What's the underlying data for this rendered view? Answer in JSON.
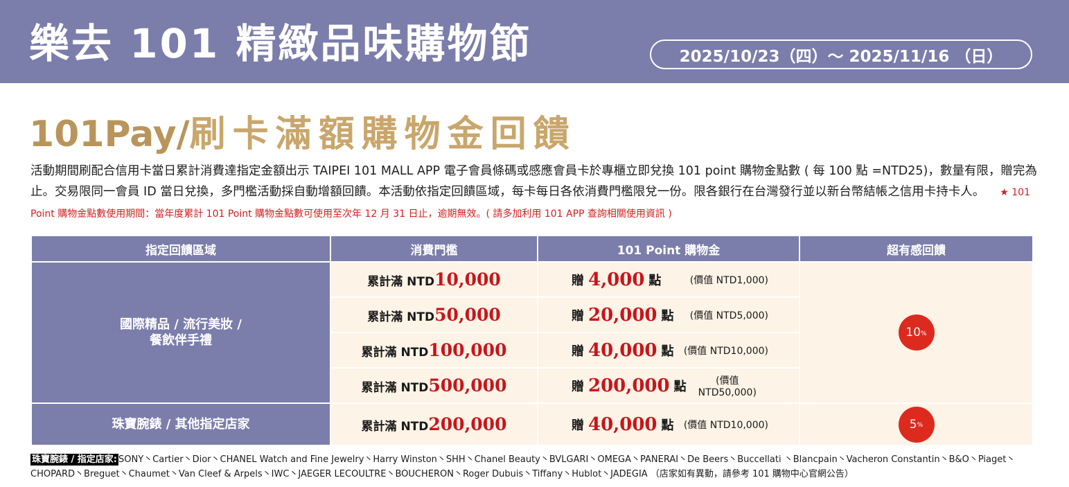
{
  "header": {
    "title": "樂去 101 精緻品味購物節",
    "date": "2025/10/23（四）～ 2025/11/16 （日）"
  },
  "promo": {
    "title_latin": "101Pay/",
    "title_zh": "刷卡滿額購物金回饋",
    "description": "活動期間刷配合信用卡當日累計消費達指定金額出示 TAIPEI 101 MALL APP 電子會員條碼或感應會員卡於專櫃立即兌換 101 point 購物金點數 ( 每 100 點 =NTD25)，數量有限，贈完為止。交易限同一會員 ID 當日兌換，多門檻活動採自動增額回饋。本活動依指定回饋區域，每卡每日各依消費門檻限兌一份。限各銀行在台灣發行並以新台幣結帳之信用卡持卡人。",
    "note": "★ 101 Point 購物金點數使用期間：當年度累計 101 Point 購物金點數可使用至次年 12 月 31 日止，逾期無效。( 請多加利用 101 APP 查詢相關使用資訊 )"
  },
  "table": {
    "headers": [
      "指定回饋區域",
      "消費門檻",
      "101 Point 購物金",
      "超有感回饋"
    ],
    "threshold_label": "累計滿 NTD",
    "give_label": "贈",
    "points_unit": "點",
    "groups": [
      {
        "area_line1": "國際精品 / 流行美妝 /",
        "area_line2": "餐飲伴手禮",
        "rate": "10",
        "rate_unit": "%",
        "rows": [
          {
            "threshold": "10,000",
            "points": "4,000",
            "value": "(價值 NTD1,000)"
          },
          {
            "threshold": "50,000",
            "points": "20,000",
            "value": "(價值 NTD5,000)"
          },
          {
            "threshold": "100,000",
            "points": "40,000",
            "value": "(價值 NTD10,000)"
          },
          {
            "threshold": "500,000",
            "points": "200,000",
            "value": "(價值 NTD50,000)"
          }
        ]
      },
      {
        "area_line1": "珠寶腕錶 / 其他指定店家",
        "rate": "5",
        "rate_unit": "%",
        "rows": [
          {
            "threshold": "200,000",
            "points": "40,000",
            "value": "(價值 NTD10,000)"
          }
        ]
      }
    ]
  },
  "footer": {
    "tag": "珠寶腕錶 / 指定店家:",
    "stores": "SONY丶Cartier丶Dior丶CHANEL Watch and Fine Jewelry丶Harry Winston丶SHH丶Chanel Beauty丶BVLGARI丶OMEGA丶PANERAI丶De Beers丶Buccellati 丶Blancpain丶Vacheron Constantin丶B&O丶Piaget丶CHOPARD丶Breguet丶Chaumet丶Van Cleef & Arpels丶IWC丶JAEGER LECOULTRE丶BOUCHERON丶Roger Dubuis丶Tiffany丶Hublot丶JADEGIA （店家如有異動，請參考 101 購物中心官網公告）"
  },
  "colors": {
    "header_bg": "#7b7dab",
    "gold": "#c9a66b",
    "cell_bg": "#fdf3e6",
    "accent_red": "#c8151b",
    "badge_red": "#dd2a1f"
  }
}
